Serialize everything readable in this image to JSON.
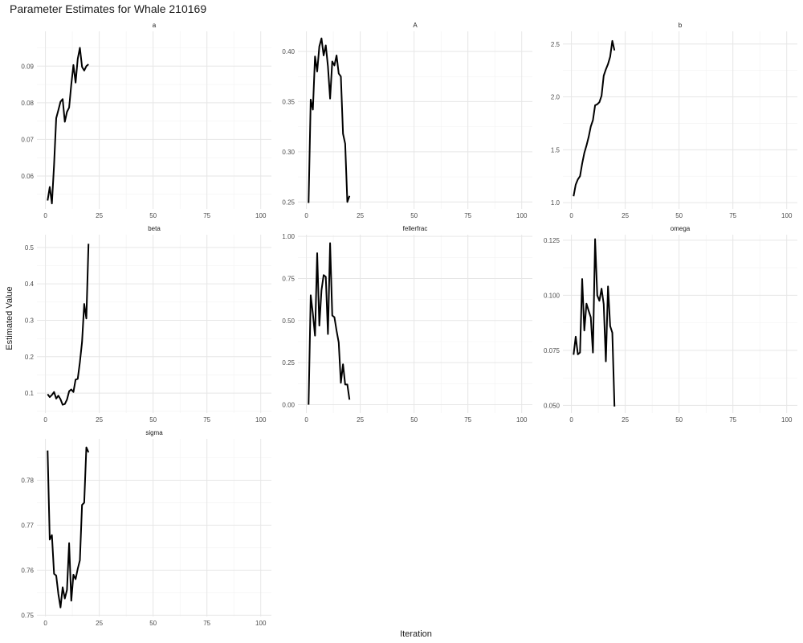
{
  "title": "Parameter Estimates for Whale 210169",
  "xlabel": "Iteration",
  "ylabel": "Estimated Value",
  "chart_data": {
    "type": "line",
    "title": "Parameter Estimates for Whale 210169",
    "xlabel": "Iteration",
    "ylabel": "Estimated Value",
    "xlim": [
      1,
      100
    ],
    "xticks": [
      0,
      25,
      50,
      75,
      100
    ],
    "line_color": "#000000",
    "x": [
      1,
      2,
      3,
      4,
      5,
      6,
      7,
      8,
      9,
      10,
      11,
      12,
      13,
      14,
      15,
      16,
      17,
      18,
      19,
      20
    ],
    "facets": [
      {
        "name": "a",
        "ylim": [
          0.051,
          0.0995
        ],
        "yticks": [
          0.06,
          0.07,
          0.08,
          0.09
        ],
        "ytick_labels": [
          "0.06",
          "0.07",
          "0.08",
          "0.09"
        ],
        "values": [
          0.0533,
          0.057,
          0.0525,
          0.063,
          0.0758,
          0.078,
          0.0803,
          0.081,
          0.0748,
          0.0775,
          0.0787,
          0.085,
          0.0903,
          0.0855,
          0.092,
          0.095,
          0.0898,
          0.0888,
          0.09,
          0.0905
        ]
      },
      {
        "name": "A",
        "ylim": [
          0.243,
          0.42
        ],
        "yticks": [
          0.25,
          0.3,
          0.35,
          0.4
        ],
        "ytick_labels": [
          "0.25",
          "0.30",
          "0.35",
          "0.40"
        ],
        "values": [
          0.249,
          0.352,
          0.342,
          0.395,
          0.38,
          0.405,
          0.413,
          0.396,
          0.406,
          0.385,
          0.353,
          0.39,
          0.386,
          0.396,
          0.378,
          0.375,
          0.318,
          0.308,
          0.25,
          0.256
        ]
      },
      {
        "name": "b",
        "ylim": [
          0.94,
          2.62
        ],
        "yticks": [
          1.0,
          1.5,
          2.0,
          2.5
        ],
        "ytick_labels": [
          "1.0",
          "1.5",
          "2.0",
          "2.5"
        ],
        "values": [
          1.06,
          1.17,
          1.22,
          1.25,
          1.37,
          1.47,
          1.54,
          1.62,
          1.72,
          1.78,
          1.92,
          1.93,
          1.95,
          2.01,
          2.2,
          2.26,
          2.31,
          2.38,
          2.53,
          2.44
        ]
      },
      {
        "name": "beta",
        "ylim": [
          0.045,
          0.535
        ],
        "yticks": [
          0.1,
          0.2,
          0.3,
          0.4,
          0.5
        ],
        "ytick_labels": [
          "0.1",
          "0.2",
          "0.3",
          "0.4",
          "0.5"
        ],
        "values": [
          0.097,
          0.089,
          0.095,
          0.103,
          0.085,
          0.093,
          0.083,
          0.068,
          0.07,
          0.082,
          0.105,
          0.11,
          0.103,
          0.137,
          0.139,
          0.185,
          0.24,
          0.345,
          0.305,
          0.51
        ]
      },
      {
        "name": "fellerfrac",
        "ylim": [
          -0.05,
          1.01
        ],
        "yticks": [
          0.0,
          0.25,
          0.5,
          0.75,
          1.0
        ],
        "ytick_labels": [
          "0.00",
          "0.25",
          "0.50",
          "0.75",
          "1.00"
        ],
        "values": [
          0.0,
          0.65,
          0.54,
          0.41,
          0.9,
          0.47,
          0.68,
          0.77,
          0.76,
          0.42,
          0.96,
          0.53,
          0.52,
          0.44,
          0.37,
          0.13,
          0.24,
          0.12,
          0.12,
          0.03
        ]
      },
      {
        "name": "omega",
        "ylim": [
          0.0465,
          0.1275
        ],
        "yticks": [
          0.05,
          0.075,
          0.1,
          0.125
        ],
        "ytick_labels": [
          "0.050",
          "0.075",
          "0.100",
          "0.125"
        ],
        "values": [
          0.073,
          0.0812,
          0.0732,
          0.074,
          0.1074,
          0.084,
          0.0962,
          0.093,
          0.09,
          0.074,
          0.1255,
          0.1,
          0.0975,
          0.103,
          0.096,
          0.07,
          0.104,
          0.086,
          0.083,
          0.0495
        ]
      },
      {
        "name": "sigma",
        "ylim": [
          0.7497,
          0.7892
        ],
        "yticks": [
          0.75,
          0.76,
          0.77,
          0.78
        ],
        "ytick_labels": [
          "0.75",
          "0.76",
          "0.77",
          "0.78"
        ],
        "values": [
          0.7866,
          0.7668,
          0.7678,
          0.7592,
          0.7588,
          0.7547,
          0.7517,
          0.7562,
          0.7537,
          0.7556,
          0.766,
          0.7532,
          0.759,
          0.758,
          0.7603,
          0.7622,
          0.7745,
          0.775,
          0.7873,
          0.7862
        ]
      }
    ]
  }
}
